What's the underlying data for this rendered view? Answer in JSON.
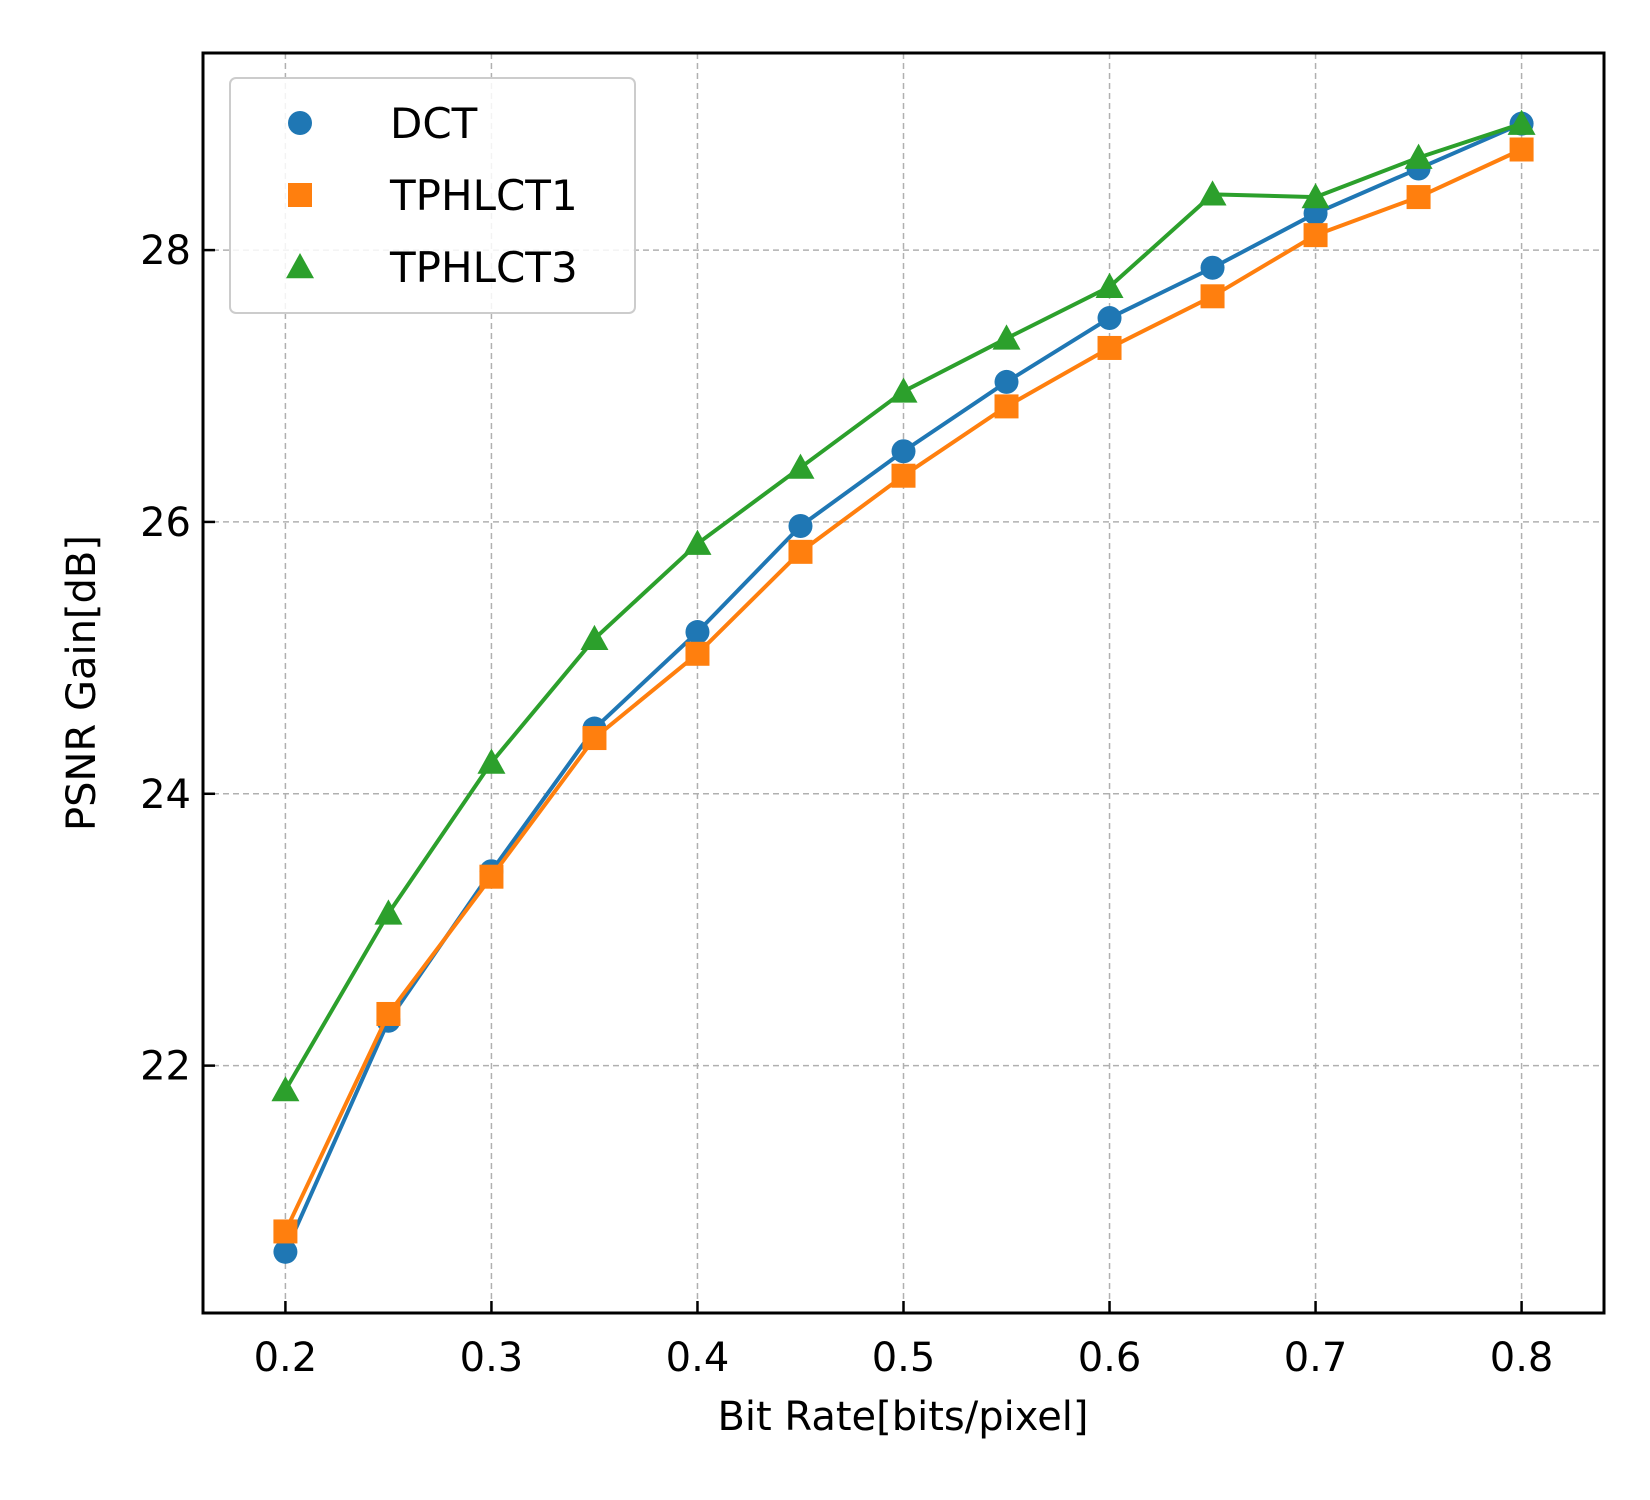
{
  "chart_data": {
    "type": "line",
    "xlabel": "Bit Rate[bits/pixel]",
    "ylabel": "PSNR Gain[dB]",
    "xlim": [
      0.16,
      0.84
    ],
    "ylim": [
      20.18,
      29.45
    ],
    "xticks": [
      0.2,
      0.3,
      0.4,
      0.5,
      0.6,
      0.7,
      0.8
    ],
    "xtick_labels": [
      "0.2",
      "0.3",
      "0.4",
      "0.5",
      "0.6",
      "0.7",
      "0.8"
    ],
    "yticks": [
      22,
      24,
      26,
      28
    ],
    "ytick_labels": [
      "22",
      "24",
      "26",
      "28"
    ],
    "grid": true,
    "legend_position": "top-left",
    "x": [
      0.2,
      0.25,
      0.3,
      0.35,
      0.4,
      0.45,
      0.5,
      0.55,
      0.6,
      0.65,
      0.7,
      0.75,
      0.8
    ],
    "series": [
      {
        "name": "DCT",
        "marker": "circle",
        "color": "#1f77b4",
        "values": [
          20.63,
          22.33,
          23.43,
          24.48,
          25.19,
          25.97,
          26.52,
          27.03,
          27.5,
          27.87,
          28.27,
          28.6,
          28.93
        ]
      },
      {
        "name": "TPHLCT1",
        "marker": "square",
        "color": "#ff7f0e",
        "values": [
          20.78,
          22.38,
          23.39,
          24.41,
          25.03,
          25.78,
          26.34,
          26.85,
          27.28,
          27.66,
          28.11,
          28.39,
          28.74
        ]
      },
      {
        "name": "TPHLCT3",
        "marker": "triangle",
        "color": "#2ca02c",
        "values": [
          21.82,
          23.12,
          24.23,
          25.14,
          25.84,
          26.4,
          26.96,
          27.35,
          27.73,
          28.41,
          28.39,
          28.68,
          28.93
        ]
      }
    ]
  }
}
